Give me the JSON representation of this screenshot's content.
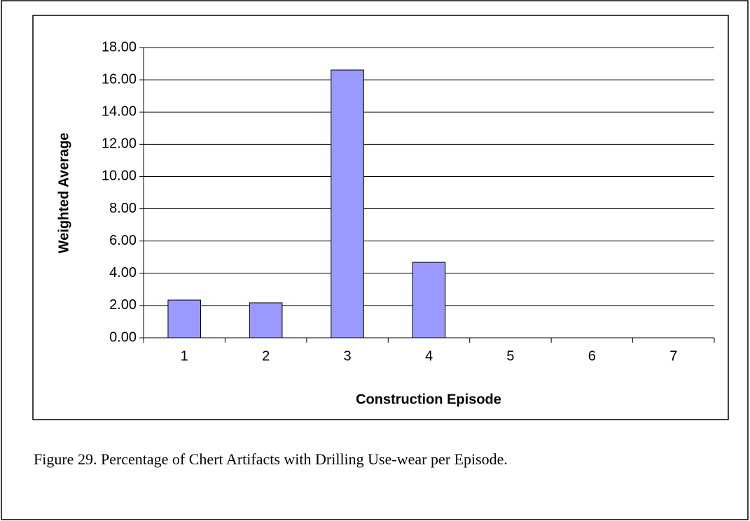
{
  "chart_data": {
    "type": "bar",
    "x_label": "Construction Episode",
    "y_label": "Weighted Average",
    "caption": "Figure 29. Percentage of Chert Artifacts with Drilling Use-wear per Episode.",
    "categories": [
      "1",
      "2",
      "3",
      "4",
      "5",
      "6",
      "7"
    ],
    "values": [
      2.34,
      2.17,
      16.61,
      4.68,
      0,
      0,
      0
    ],
    "color": "#9999ff",
    "ylim": [
      0,
      18
    ],
    "yticks": [
      {
        "value": 0,
        "label": "0.00"
      },
      {
        "value": 2,
        "label": "2.00"
      },
      {
        "value": 4,
        "label": "4.00"
      },
      {
        "value": 6,
        "label": "6.00"
      },
      {
        "value": 8,
        "label": "8.00"
      },
      {
        "value": 10,
        "label": "10.00"
      },
      {
        "value": 12,
        "label": "12.00"
      },
      {
        "value": 14,
        "label": "14.00"
      },
      {
        "value": 16,
        "label": "16.00"
      },
      {
        "value": 18,
        "label": "18.00"
      }
    ],
    "grid": true
  }
}
